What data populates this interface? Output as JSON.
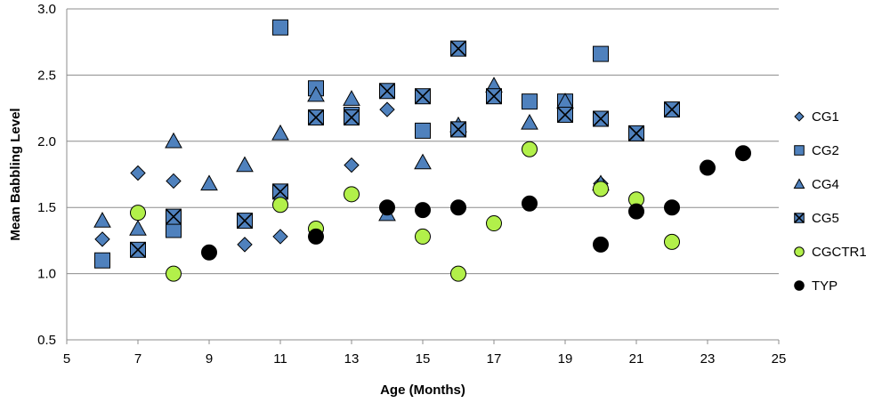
{
  "chart_data": {
    "type": "scatter",
    "title": "",
    "xlabel": "Age (Months)",
    "ylabel": "Mean Babbling Level",
    "xlim": [
      5,
      25
    ],
    "ylim": [
      0.5,
      3.0
    ],
    "xticks": [
      "5",
      "7",
      "9",
      "11",
      "13",
      "15",
      "17",
      "19",
      "21",
      "23",
      "25"
    ],
    "yticks": [
      "0.5",
      "1.0",
      "1.5",
      "2.0",
      "2.5",
      "3.0"
    ],
    "grid": "horizontal",
    "legend_position": "right",
    "series": [
      {
        "name": "CG1",
        "marker": "diamond",
        "color": "#4F81BD",
        "points": [
          [
            6,
            1.26
          ],
          [
            7,
            1.76
          ],
          [
            8,
            1.7
          ],
          [
            10,
            1.22
          ],
          [
            11,
            1.28
          ],
          [
            13,
            1.82
          ],
          [
            14,
            2.24
          ],
          [
            19,
            2.3
          ],
          [
            20,
            1.68
          ]
        ]
      },
      {
        "name": "CG2",
        "marker": "square",
        "color": "#4F81BD",
        "points": [
          [
            6,
            1.1
          ],
          [
            8,
            1.33
          ],
          [
            11,
            2.86
          ],
          [
            12,
            2.4
          ],
          [
            13,
            2.2
          ],
          [
            15,
            2.08
          ],
          [
            16,
            2.09
          ],
          [
            18,
            2.3
          ],
          [
            19,
            2.3
          ],
          [
            20,
            2.66
          ]
        ]
      },
      {
        "name": "CG4",
        "marker": "triangle",
        "color": "#4F81BD",
        "points": [
          [
            6,
            1.4
          ],
          [
            7,
            1.34
          ],
          [
            8,
            2.0
          ],
          [
            9,
            1.68
          ],
          [
            10,
            1.82
          ],
          [
            11,
            2.06
          ],
          [
            12,
            2.35
          ],
          [
            13,
            2.32
          ],
          [
            14,
            1.45
          ],
          [
            15,
            1.84
          ],
          [
            16,
            2.12
          ],
          [
            17,
            2.42
          ],
          [
            18,
            2.14
          ],
          [
            19,
            2.3
          ],
          [
            20,
            1.68
          ]
        ]
      },
      {
        "name": "CG5",
        "marker": "x-square",
        "color": "#4F81BD",
        "points": [
          [
            7,
            1.18
          ],
          [
            8,
            1.43
          ],
          [
            10,
            1.4
          ],
          [
            11,
            1.62
          ],
          [
            12,
            2.18
          ],
          [
            13,
            2.18
          ],
          [
            14,
            2.38
          ],
          [
            15,
            2.34
          ],
          [
            16,
            2.7
          ],
          [
            16,
            2.09
          ],
          [
            17,
            2.34
          ],
          [
            19,
            2.2
          ],
          [
            20,
            2.17
          ],
          [
            21,
            2.06
          ],
          [
            22,
            2.24
          ]
        ]
      },
      {
        "name": "CGCTR1",
        "marker": "circle",
        "color": "#B2F04A",
        "points": [
          [
            7,
            1.46
          ],
          [
            8,
            1.0
          ],
          [
            11,
            1.52
          ],
          [
            12,
            1.34
          ],
          [
            13,
            1.6
          ],
          [
            15,
            1.28
          ],
          [
            16,
            1.0
          ],
          [
            17,
            1.38
          ],
          [
            18,
            1.94
          ],
          [
            20,
            1.64
          ],
          [
            21,
            1.56
          ],
          [
            22,
            1.24
          ]
        ]
      },
      {
        "name": "TYP",
        "marker": "circle",
        "color": "#000000",
        "points": [
          [
            9,
            1.16
          ],
          [
            12,
            1.28
          ],
          [
            14,
            1.5
          ],
          [
            15,
            1.48
          ],
          [
            16,
            1.5
          ],
          [
            18,
            1.53
          ],
          [
            20,
            1.22
          ],
          [
            21,
            1.47
          ],
          [
            22,
            1.5
          ],
          [
            23,
            1.8
          ],
          [
            24,
            1.91
          ]
        ]
      }
    ]
  }
}
